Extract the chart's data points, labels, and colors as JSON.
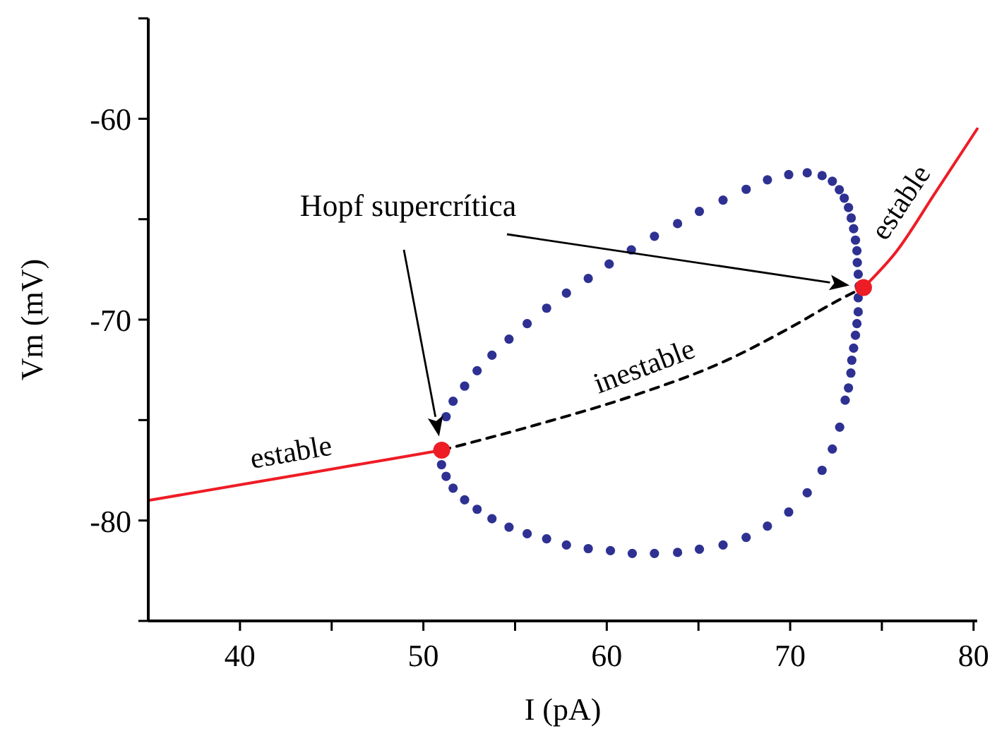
{
  "chart_data": {
    "type": "line",
    "xlabel": "I (pA)",
    "ylabel": "Vm (mV)",
    "xlim": [
      35,
      80.2
    ],
    "ylim": [
      -85,
      -55
    ],
    "xticks": [
      40,
      {
        "value": 45,
        "label": null
      },
      50,
      {
        "value": 55,
        "label": null
      },
      60,
      {
        "value": 65,
        "label": null
      },
      70,
      {
        "value": 75,
        "label": null
      },
      80
    ],
    "yticks": [
      {
        "value": -85,
        "label": null
      },
      -80,
      {
        "value": -75,
        "label": null
      },
      -70,
      {
        "value": -65,
        "label": null
      },
      -60,
      {
        "value": -55,
        "label": null
      }
    ],
    "grid": false,
    "annotations": [
      "Hopf supercrítica"
    ],
    "series": [
      {
        "name": "estable",
        "color": "#ee1c25",
        "line_style": "solid",
        "x": [
          35,
          40.8,
          45.9,
          51.0
        ],
        "values": [
          -79.0,
          -78.1,
          -77.3,
          -76.5
        ]
      },
      {
        "name": "estable",
        "color": "#ee1c25",
        "line_style": "solid",
        "x": [
          74.0,
          75.8,
          77.9,
          80.2
        ],
        "values": [
          -68.4,
          -66.6,
          -63.7,
          -60.5
        ]
      },
      {
        "name": "inestable",
        "color": "#000000",
        "line_style": "dashed",
        "x": [
          51.0,
          56.3,
          61.4,
          66.6,
          70.0,
          72.7,
          74.0
        ],
        "values": [
          -76.5,
          -75.2,
          -73.8,
          -72.0,
          -70.4,
          -69.0,
          -68.4
        ]
      },
      {
        "type": "scatter",
        "color": "#2e3192",
        "marker": "circle",
        "x": [
          51.24,
          51.62,
          52.25,
          52.93,
          53.74,
          54.67,
          55.66,
          56.72,
          57.8,
          58.99,
          60.13,
          61.34,
          62.6,
          63.86,
          65.05,
          66.34,
          67.6,
          68.76,
          69.92,
          70.93,
          71.74,
          72.3,
          72.68,
          72.95,
          73.18,
          73.33,
          73.46,
          73.56,
          73.64,
          73.66,
          73.71,
          73.76,
          73.71,
          73.71,
          73.64,
          73.56,
          73.46,
          73.36,
          73.31,
          73.18,
          73.0,
          72.7,
          72.3,
          71.74,
          70.93,
          69.92,
          68.76,
          67.6,
          66.34,
          65.05,
          63.86,
          62.6,
          61.39,
          60.2,
          58.99,
          57.8,
          56.72,
          55.66,
          54.67,
          53.74,
          52.93,
          52.25,
          51.62,
          51.24,
          50.99
        ],
        "values": [
          -74.83,
          -74.06,
          -73.31,
          -72.54,
          -71.77,
          -70.97,
          -70.2,
          -69.43,
          -68.68,
          -67.95,
          -67.23,
          -66.53,
          -65.85,
          -65.22,
          -64.61,
          -64.05,
          -63.51,
          -63.04,
          -62.78,
          -62.69,
          -62.83,
          -63.11,
          -63.53,
          -63.95,
          -64.42,
          -64.94,
          -65.47,
          -66.04,
          -66.57,
          -67.16,
          -67.74,
          -68.33,
          -68.91,
          -69.61,
          -70.2,
          -70.78,
          -71.42,
          -72.02,
          -72.66,
          -73.4,
          -74.01,
          -75.35,
          -76.44,
          -77.5,
          -78.62,
          -79.58,
          -80.28,
          -80.84,
          -81.22,
          -81.43,
          -81.59,
          -81.64,
          -81.64,
          -81.5,
          -81.4,
          -81.22,
          -80.91,
          -80.66,
          -80.33,
          -79.91,
          -79.44,
          -78.97,
          -78.39,
          -77.8,
          -77.22
        ]
      },
      {
        "type": "scatter",
        "color": "#ee1c25",
        "marker": "circle",
        "x": [
          51.0,
          74.0
        ],
        "values": [
          -76.5,
          -68.4
        ]
      }
    ]
  }
}
